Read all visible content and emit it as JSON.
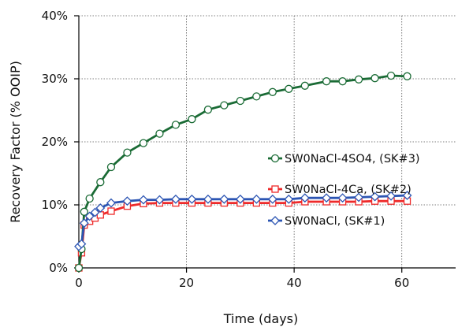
{
  "chart_data": {
    "type": "line",
    "title": "",
    "xlabel": "Time (days)",
    "ylabel": "Recovery Factor (% OOIP)",
    "xlim": [
      0,
      70
    ],
    "ylim": [
      0,
      40
    ],
    "xticks": [
      0,
      20,
      40,
      60
    ],
    "yticks": [
      0,
      10,
      20,
      30,
      40
    ],
    "xtick_labels": [
      "0",
      "20",
      "40",
      "60"
    ],
    "ytick_labels": [
      "0%",
      "10%",
      "20%",
      "30%",
      "40%"
    ],
    "grid": "dotted",
    "legend_position": "right",
    "series": [
      {
        "name": "SW0NaCl-4SO4, (SK#3)",
        "color": "#1a6b35",
        "marker": "circle",
        "x": [
          0,
          0.5,
          1,
          2,
          4,
          6,
          9,
          12,
          15,
          18,
          21,
          24,
          27,
          30,
          33,
          36,
          39,
          42,
          46,
          49,
          52,
          55,
          58,
          61
        ],
        "y": [
          0,
          3,
          8.9,
          11,
          13.6,
          16,
          18.3,
          19.8,
          21.3,
          22.7,
          23.6,
          25.1,
          25.8,
          26.5,
          27.2,
          27.9,
          28.4,
          28.9,
          29.6,
          29.6,
          29.9,
          30.1,
          30.5,
          30.4
        ]
      },
      {
        "name": "SW0NaCl-4Ca, (SK#2)",
        "color": "#ee2a2a",
        "marker": "square",
        "x": [
          0,
          0.5,
          1,
          2,
          3,
          4,
          6,
          9,
          12,
          15,
          18,
          21,
          24,
          27,
          30,
          33,
          36,
          39,
          42,
          46,
          49,
          52,
          55,
          58,
          61
        ],
        "y": [
          0,
          2.4,
          6.8,
          7.4,
          7.9,
          8.4,
          9.0,
          9.8,
          10.2,
          10.3,
          10.3,
          10.3,
          10.3,
          10.3,
          10.3,
          10.3,
          10.3,
          10.3,
          10.5,
          10.5,
          10.5,
          10.5,
          10.6,
          10.6,
          10.6
        ]
      },
      {
        "name": "SW0NaCl, (SK#1)",
        "color": "#2c55b3",
        "marker": "diamond",
        "x": [
          0,
          0.5,
          1,
          2,
          3,
          4,
          6,
          9,
          12,
          15,
          18,
          21,
          24,
          27,
          30,
          33,
          36,
          39,
          42,
          46,
          49,
          52,
          55,
          58,
          61
        ],
        "y": [
          3.4,
          3.8,
          7.1,
          8.2,
          8.8,
          9.5,
          10.3,
          10.6,
          10.8,
          10.8,
          10.9,
          10.9,
          10.9,
          10.9,
          10.9,
          10.9,
          10.9,
          10.9,
          11.1,
          11.1,
          11.1,
          11.2,
          11.3,
          11.4,
          11.5
        ]
      }
    ]
  }
}
